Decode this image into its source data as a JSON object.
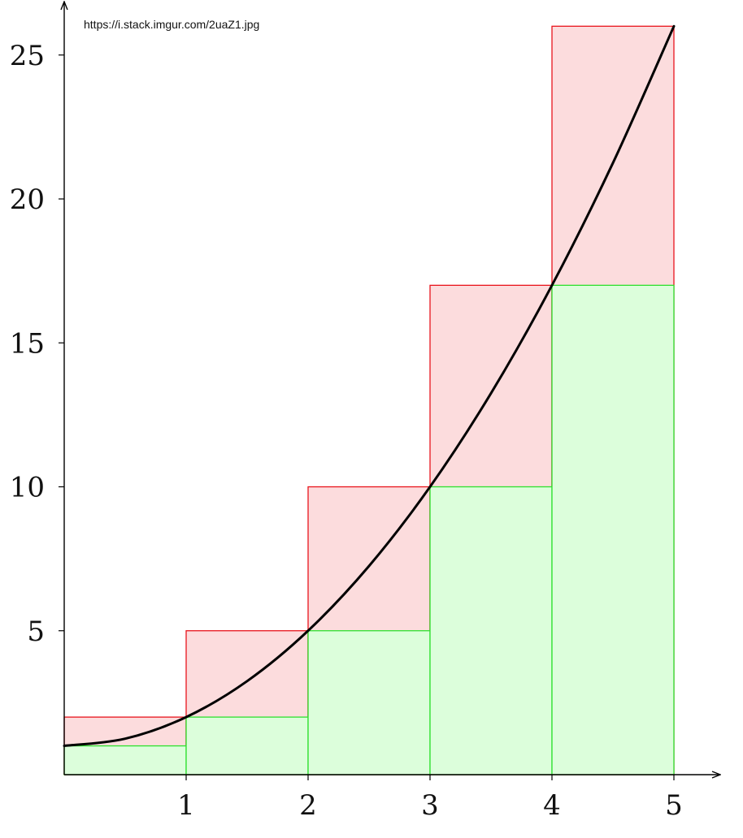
{
  "source_url": "https://i.stack.imgur.com/2uaZ1.jpg",
  "colors": {
    "axis": "#000000",
    "curve": "#000000",
    "upper_stroke": "#e8141c",
    "upper_fill": "#fcdcdd",
    "lower_stroke": "#2ee02e",
    "lower_fill": "#dcfedb"
  },
  "chart_data": {
    "type": "bar",
    "title": "",
    "xlabel": "",
    "ylabel": "",
    "xlim": [
      0,
      5
    ],
    "ylim": [
      0,
      26
    ],
    "x_ticks": [
      1,
      2,
      3,
      4,
      5
    ],
    "x_tick_labels": [
      "1",
      "2",
      "3",
      "4",
      "5"
    ],
    "y_ticks": [
      5,
      10,
      15,
      20,
      25
    ],
    "y_tick_labels": [
      "5",
      "10",
      "15",
      "20",
      "25"
    ],
    "grid": false,
    "legend": false,
    "curve": {
      "function": "y = x^2 + 1",
      "x": [
        0,
        0.5,
        1,
        1.5,
        2,
        2.5,
        3,
        3.5,
        4,
        4.5,
        5
      ],
      "y": [
        1,
        1.25,
        2,
        3.25,
        5,
        7.25,
        10,
        13.25,
        17,
        21.25,
        26
      ]
    },
    "intervals": [
      [
        0,
        1
      ],
      [
        1,
        2
      ],
      [
        2,
        3
      ],
      [
        3,
        4
      ],
      [
        4,
        5
      ]
    ],
    "series": [
      {
        "values": [
          2,
          5,
          10,
          17,
          26
        ]
      },
      {
        "values": [
          1,
          2,
          5,
          10,
          17
        ]
      }
    ]
  }
}
